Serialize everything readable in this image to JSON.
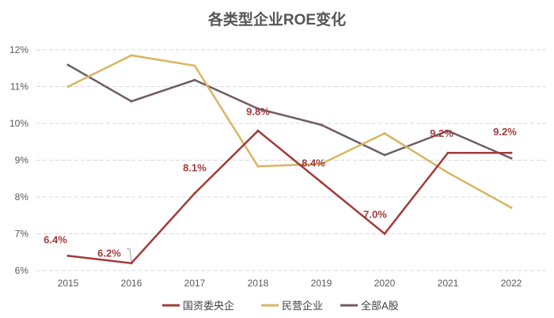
{
  "chart_data": {
    "type": "line",
    "title": "各类型企业ROE变化",
    "categories": [
      "2015",
      "2016",
      "2017",
      "2018",
      "2019",
      "2020",
      "2021",
      "2022"
    ],
    "ylim": [
      6,
      12
    ],
    "yticks": [
      "6%",
      "7%",
      "8%",
      "9%",
      "10%",
      "11%",
      "12%"
    ],
    "grid": true,
    "legend": "bottom",
    "series": [
      {
        "name": "国资委央企",
        "color": "#A33A3A",
        "values": [
          6.4,
          6.2,
          8.1,
          9.8,
          8.4,
          7.0,
          9.2,
          9.2
        ],
        "labels": [
          "6.4%",
          "6.2%",
          "8.1%",
          "9.8%",
          "8.4%",
          "7.0%",
          "9.2%",
          "9.2%"
        ]
      },
      {
        "name": "民营企业",
        "color": "#D8B561",
        "values": [
          11.0,
          11.85,
          11.57,
          8.83,
          8.9,
          9.73,
          8.66,
          7.71
        ]
      },
      {
        "name": "全部A股",
        "color": "#6E5C66",
        "values": [
          11.59,
          10.6,
          11.18,
          10.4,
          9.96,
          9.14,
          9.8,
          9.05
        ]
      }
    ]
  }
}
